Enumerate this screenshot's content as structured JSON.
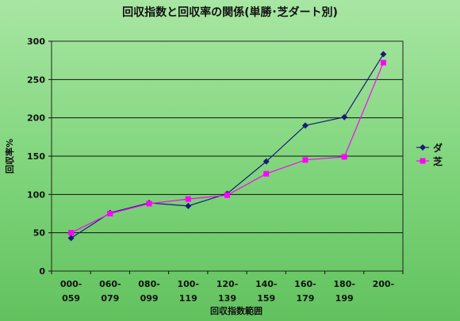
{
  "chart_data": {
    "type": "line",
    "title": "回収指数と回収率の関係(単勝･芝ダート別)",
    "xlabel": "回収指数範囲",
    "ylabel": "回収率%",
    "categories": [
      [
        "000-",
        "059"
      ],
      [
        "060-",
        "079"
      ],
      [
        "080-",
        "099"
      ],
      [
        "100-",
        "119"
      ],
      [
        "120-",
        "139"
      ],
      [
        "140-",
        "159"
      ],
      [
        "160-",
        "179"
      ],
      [
        "180-",
        "199"
      ],
      [
        "200-",
        ""
      ]
    ],
    "ylim": [
      0,
      300
    ],
    "yticks": [
      0,
      50,
      100,
      150,
      200,
      250,
      300
    ],
    "grid": true,
    "legend_position": "right",
    "series": [
      {
        "name": "ダ",
        "color": "#1a1a7a",
        "marker": "diamond",
        "values": [
          43,
          76,
          89,
          85,
          101,
          143,
          190,
          201,
          283
        ]
      },
      {
        "name": "芝",
        "color": "#ff00ff",
        "marker": "square",
        "values": [
          50,
          75,
          88,
          94,
          99,
          127,
          145,
          149,
          272
        ]
      }
    ]
  }
}
